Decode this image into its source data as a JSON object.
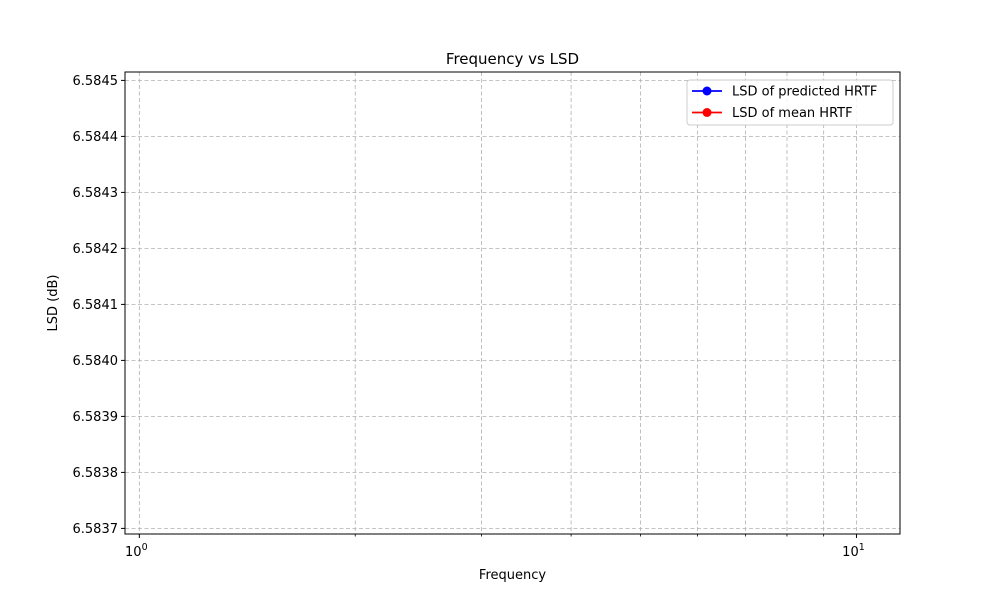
{
  "chart_data": {
    "type": "line",
    "title": "Frequency vs LSD",
    "xlabel": "Frequency",
    "ylabel": "LSD (dB)",
    "x_scale": "log",
    "xlim": [
      0.955,
      11.5
    ],
    "ylim": [
      6.58369,
      6.584515
    ],
    "x_major_ticks": [
      {
        "value": 1,
        "base": "10",
        "exp": "0"
      },
      {
        "value": 10,
        "base": "10",
        "exp": "1"
      }
    ],
    "x_minor_ticks": [
      2,
      3,
      4,
      5,
      6,
      7,
      8,
      9
    ],
    "y_ticks": [
      {
        "value": 6.5837,
        "label": "6.5837"
      },
      {
        "value": 6.5838,
        "label": "6.5838"
      },
      {
        "value": 6.5839,
        "label": "6.5839"
      },
      {
        "value": 6.584,
        "label": "6.5840"
      },
      {
        "value": 6.5841,
        "label": "6.5841"
      },
      {
        "value": 6.5842,
        "label": "6.5842"
      },
      {
        "value": 6.5843,
        "label": "6.5843"
      },
      {
        "value": 6.5844,
        "label": "6.5844"
      },
      {
        "value": 6.5845,
        "label": "6.5845"
      }
    ],
    "grid": true,
    "legend_position": "top-right",
    "series": [
      {
        "name": "LSD of predicted HRTF",
        "color": "#0000ff",
        "marker": "circle",
        "x": [],
        "y": []
      },
      {
        "name": "LSD of mean HRTF",
        "color": "#ff0000",
        "marker": "circle",
        "x": [],
        "y": []
      }
    ]
  }
}
